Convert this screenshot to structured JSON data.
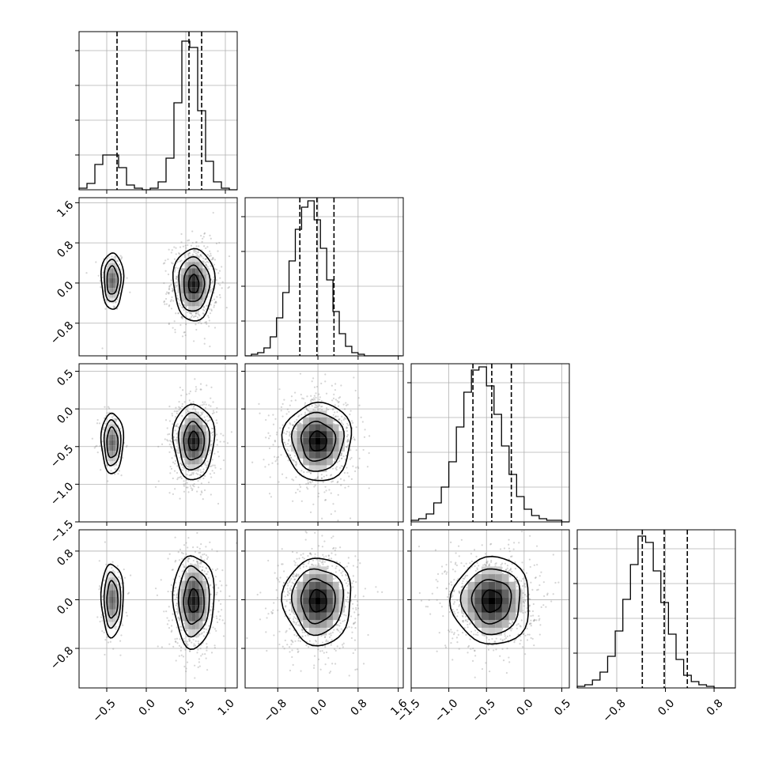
{
  "chart_data": {
    "type": "corner",
    "params": 4,
    "title": "",
    "grid": true,
    "ranges": [
      [
        -0.85,
        1.15
      ],
      [
        -1.45,
        1.7
      ],
      [
        -1.5,
        0.6
      ],
      [
        -1.45,
        1.15
      ]
    ],
    "ticks": {
      "x": [
        [
          -0.5,
          0.0,
          0.5,
          1.0
        ],
        [
          -0.8,
          0.0,
          0.8,
          1.6
        ],
        [
          -1.5,
          -1.0,
          -0.5,
          0.0,
          0.5
        ],
        [
          -0.8,
          0.0,
          0.8
        ]
      ],
      "y": [
        null,
        [
          -0.8,
          0.0,
          0.8,
          1.6
        ],
        [
          -1.5,
          -1.0,
          -0.5,
          0.0,
          0.5
        ],
        [
          -0.8,
          0.0,
          0.8
        ]
      ]
    },
    "tick_labels": {
      "x0": [
        "−0.5",
        "0.0",
        "0.5",
        "1.0"
      ],
      "x1": [
        "−0.8",
        "0.0",
        "0.8",
        "1.6"
      ],
      "x2": [
        "−1.5",
        "−1.0",
        "−0.5",
        "0.0",
        "0.5"
      ],
      "x3": [
        "−0.8",
        "0.0",
        "0.8"
      ],
      "y1": [
        "−0.8",
        "0.0",
        "0.8",
        "1.6"
      ],
      "y2": [
        "−1.5",
        "−1.0",
        "−0.5",
        "0.0",
        "0.5"
      ],
      "y3": [
        "−0.8",
        "0.0",
        "0.8"
      ]
    },
    "histograms": [
      {
        "param": 0,
        "bin_start": -0.85,
        "bin_width": 0.1,
        "counts": [
          0.01,
          0.04,
          0.16,
          0.22,
          0.22,
          0.14,
          0.03,
          0.01,
          0.0,
          0.01,
          0.05,
          0.2,
          0.55,
          0.94,
          0.9,
          0.5,
          0.18,
          0.05,
          0.01,
          0.0
        ],
        "quantiles": [
          -0.37,
          0.54,
          0.7
        ]
      },
      {
        "param": 1,
        "bin_start": -1.45,
        "bin_width": 0.125,
        "counts": [
          0.0,
          0.01,
          0.02,
          0.05,
          0.12,
          0.24,
          0.4,
          0.6,
          0.8,
          0.94,
          0.98,
          0.86,
          0.68,
          0.48,
          0.28,
          0.14,
          0.06,
          0.02,
          0.01,
          0.0,
          0.0,
          0.0,
          0.0,
          0.0,
          0.0
        ],
        "quantiles": [
          -0.36,
          -0.02,
          0.32
        ]
      },
      {
        "param": 2,
        "bin_start": -1.5,
        "bin_width": 0.1,
        "counts": [
          0.01,
          0.02,
          0.05,
          0.12,
          0.22,
          0.38,
          0.6,
          0.82,
          0.96,
          0.98,
          0.86,
          0.68,
          0.48,
          0.3,
          0.16,
          0.08,
          0.04,
          0.02,
          0.01,
          0.01,
          0.0
        ],
        "quantiles": [
          -0.68,
          -0.43,
          -0.17
        ]
      },
      {
        "param": 3,
        "bin_start": -1.45,
        "bin_width": 0.125,
        "counts": [
          0.01,
          0.02,
          0.05,
          0.1,
          0.2,
          0.36,
          0.56,
          0.78,
          0.96,
          0.92,
          0.74,
          0.54,
          0.34,
          0.18,
          0.08,
          0.04,
          0.02,
          0.01,
          0.0,
          0.0,
          0.0
        ],
        "quantiles": [
          -0.38,
          -0.02,
          0.36
        ]
      }
    ],
    "pairs": [
      {
        "x": 0,
        "y": 1,
        "modes": [
          {
            "cx": -0.43,
            "cy": 0.05,
            "sx": 0.07,
            "sy": 0.28,
            "weight": 0.2
          },
          {
            "cx": 0.6,
            "cy": -0.02,
            "sx": 0.13,
            "sy": 0.36,
            "weight": 0.8
          }
        ]
      },
      {
        "x": 0,
        "y": 2,
        "modes": [
          {
            "cx": -0.43,
            "cy": -0.45,
            "sx": 0.07,
            "sy": 0.2,
            "weight": 0.2
          },
          {
            "cx": 0.6,
            "cy": -0.43,
            "sx": 0.13,
            "sy": 0.25,
            "weight": 0.8
          }
        ]
      },
      {
        "x": 0,
        "y": 3,
        "modes": [
          {
            "cx": -0.43,
            "cy": 0.0,
            "sx": 0.07,
            "sy": 0.3,
            "weight": 0.2
          },
          {
            "cx": 0.6,
            "cy": -0.02,
            "sx": 0.13,
            "sy": 0.38,
            "weight": 0.8
          }
        ]
      },
      {
        "x": 1,
        "y": 2,
        "modes": [
          {
            "cx": 0.0,
            "cy": -0.43,
            "sx": 0.34,
            "sy": 0.26,
            "weight": 1.0
          }
        ]
      },
      {
        "x": 1,
        "y": 3,
        "modes": [
          {
            "cx": 0.0,
            "cy": -0.02,
            "sx": 0.34,
            "sy": 0.36,
            "weight": 1.0
          }
        ]
      },
      {
        "x": 2,
        "y": 3,
        "modes": [
          {
            "cx": -0.43,
            "cy": -0.02,
            "sx": 0.26,
            "sy": 0.36,
            "weight": 1.0
          }
        ]
      }
    ],
    "contour_levels_sigma": [
      0.5,
      1.0,
      1.5,
      2.0
    ]
  }
}
